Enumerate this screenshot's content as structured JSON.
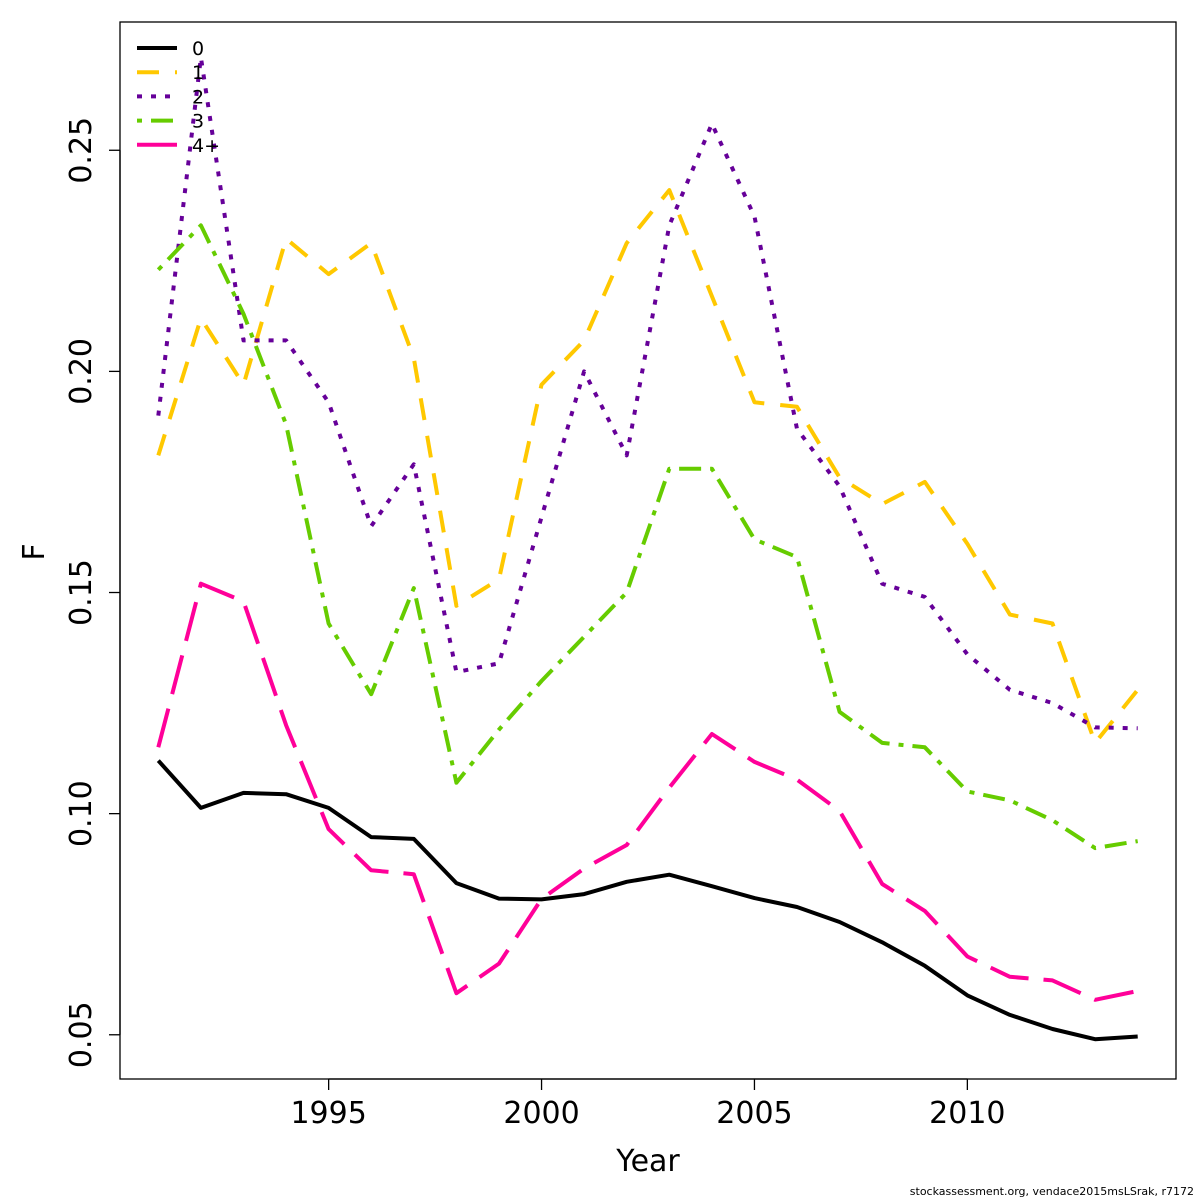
{
  "chart_data": {
    "type": "line",
    "title": "",
    "xlabel": "Year",
    "ylabel": "F",
    "xlim": [
      1990.1,
      2014.9
    ],
    "ylim": [
      0.04,
      0.279
    ],
    "x_ticks": [
      1995,
      2000,
      2005,
      2010
    ],
    "y_ticks": [
      0.05,
      0.1,
      0.15,
      0.2,
      0.25
    ],
    "y_tick_labels": [
      "0.05",
      "0.10",
      "0.15",
      "0.20",
      "0.25"
    ],
    "x_tick_labels": [
      "1995",
      "2000",
      "2005",
      "2010"
    ],
    "grid": false,
    "legend_position": "top-left",
    "x": [
      1991,
      1992,
      1993,
      1994,
      1995,
      1996,
      1997,
      1998,
      1999,
      2000,
      2001,
      2002,
      2003,
      2004,
      2005,
      2006,
      2007,
      2008,
      2009,
      2010,
      2011,
      2012,
      2013,
      2014
    ],
    "series": [
      {
        "name": "0",
        "color": "#000000",
        "dash": "solid",
        "values": [
          0.112,
          0.1013,
          0.1047,
          0.1044,
          0.1013,
          0.0947,
          0.0943,
          0.0843,
          0.0808,
          0.0806,
          0.0818,
          0.0846,
          0.0862,
          0.0836,
          0.0809,
          0.0789,
          0.0755,
          0.0709,
          0.0656,
          0.0589,
          0.0545,
          0.0513,
          0.049,
          0.0496
        ]
      },
      {
        "name": "1",
        "color": "#FFC800",
        "dash": "dashed",
        "values": [
          0.181,
          0.212,
          0.197,
          0.23,
          0.222,
          0.229,
          0.203,
          0.147,
          0.153,
          0.197,
          0.207,
          0.229,
          0.241,
          0.217,
          0.193,
          0.192,
          0.176,
          0.17,
          0.175,
          0.161,
          0.145,
          0.143,
          0.116,
          0.128
        ]
      },
      {
        "name": "2",
        "color": "#660099",
        "dash": "dotted",
        "values": [
          0.19,
          0.271,
          0.207,
          0.207,
          0.193,
          0.165,
          0.179,
          0.132,
          0.134,
          0.167,
          0.2,
          0.181,
          0.233,
          0.256,
          0.235,
          0.187,
          0.174,
          0.152,
          0.149,
          0.136,
          0.128,
          0.125,
          0.1195,
          0.1193
        ]
      },
      {
        "name": "3",
        "color": "#66CC00",
        "dash": "dotdash",
        "values": [
          0.223,
          0.233,
          0.213,
          0.188,
          0.143,
          0.127,
          0.151,
          0.107,
          0.119,
          0.13,
          0.14,
          0.15,
          0.178,
          0.178,
          0.162,
          0.158,
          0.123,
          0.116,
          0.115,
          0.105,
          0.103,
          0.0985,
          0.0922,
          0.0938
        ]
      },
      {
        "name": "4+",
        "color": "#FF0099",
        "dash": "longdash",
        "values": [
          0.115,
          0.152,
          0.148,
          0.12,
          0.0965,
          0.0872,
          0.0863,
          0.0594,
          0.0661,
          0.0807,
          0.0876,
          0.0929,
          0.1059,
          0.118,
          0.1117,
          0.1077,
          0.1006,
          0.0841,
          0.078,
          0.0677,
          0.0631,
          0.0623,
          0.0579,
          0.0599
        ]
      }
    ]
  },
  "footer": {
    "text": "stockassessment.org, vendace2015msLSrak, r7172"
  }
}
